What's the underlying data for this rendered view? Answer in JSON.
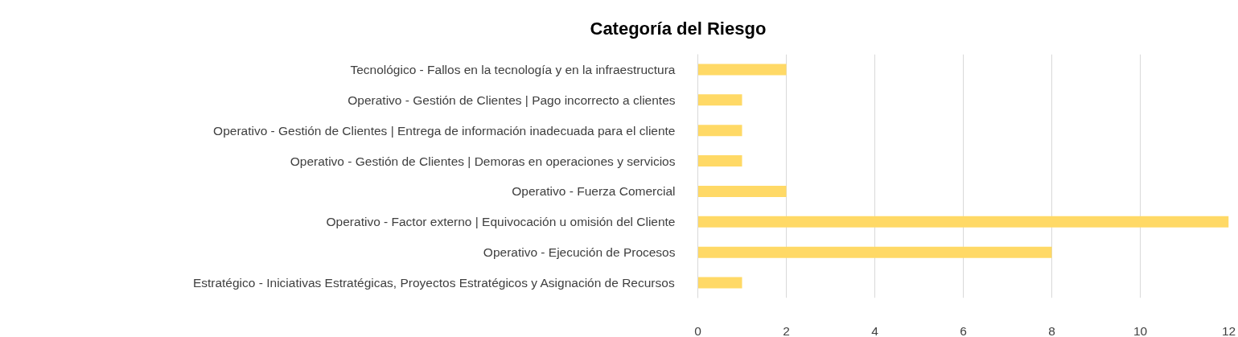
{
  "chart_data": {
    "type": "bar",
    "orientation": "horizontal",
    "title": "Categoría del Riesgo",
    "categories": [
      "Tecnológico - Fallos en la tecnología y en la infraestructura",
      "Operativo - Gestión de Clientes | Pago incorrecto a clientes",
      "Operativo - Gestión de Clientes | Entrega de información inadecuada para el cliente",
      "Operativo - Gestión de Clientes | Demoras en operaciones y servicios",
      "Operativo - Fuerza Comercial",
      "Operativo - Factor externo | Equivocación u omisión del Cliente",
      "Operativo - Ejecución de Procesos",
      "Estratégico - Iniciativas Estratégicas, Proyectos Estratégicos y Asignación de Recursos"
    ],
    "values": [
      2,
      1,
      1,
      1,
      2,
      12,
      8,
      1
    ],
    "color": "#ffd966",
    "xlim": [
      0,
      12
    ],
    "xticks": [
      0,
      2,
      4,
      6,
      8,
      10,
      12
    ],
    "grid": "x"
  }
}
